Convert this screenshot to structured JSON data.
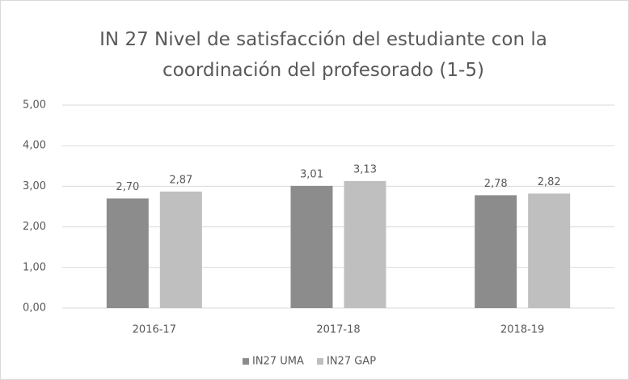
{
  "chart_data": {
    "type": "bar",
    "title": "IN 27 Nivel de satisfacción del estudiante con la coordinación del profesorado (1-5)",
    "categories": [
      "2016-17",
      "2017-18",
      "2018-19"
    ],
    "series": [
      {
        "name": "IN27 UMA",
        "color": "#8c8c8c",
        "values": [
          2.7,
          3.01,
          2.78
        ],
        "value_labels": [
          "2,70",
          "3,01",
          "2,78"
        ]
      },
      {
        "name": "IN27 GAP",
        "color": "#bfbfbf",
        "values": [
          2.87,
          3.13,
          2.82
        ],
        "value_labels": [
          "2,87",
          "3,13",
          "2,82"
        ]
      }
    ],
    "ylim": [
      0,
      5
    ],
    "yticks": [
      {
        "value": 0,
        "label": "0,00"
      },
      {
        "value": 1,
        "label": "1,00"
      },
      {
        "value": 2,
        "label": "2,00"
      },
      {
        "value": 3,
        "label": "3,00"
      },
      {
        "value": 4,
        "label": "4,00"
      },
      {
        "value": 5,
        "label": "5,00"
      }
    ],
    "grid": true,
    "legend": "bottom"
  }
}
